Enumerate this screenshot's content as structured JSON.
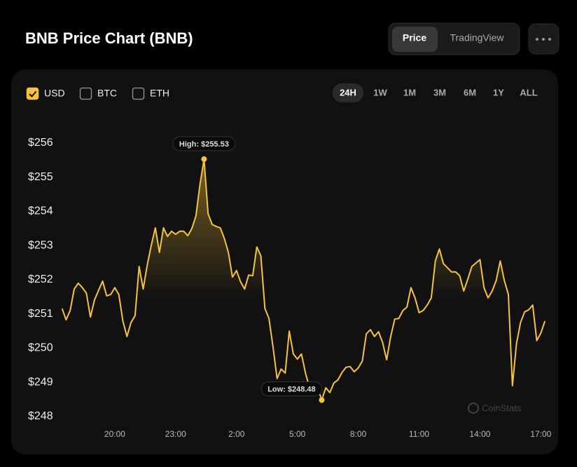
{
  "header": {
    "title": "BNB Price Chart (BNB)",
    "view_toggle": [
      {
        "label": "Price",
        "selected": true
      },
      {
        "label": "TradingView",
        "selected": false
      }
    ]
  },
  "currency_options": [
    {
      "label": "USD",
      "checked": true
    },
    {
      "label": "BTC",
      "checked": false
    },
    {
      "label": "ETH",
      "checked": false
    }
  ],
  "time_ranges": [
    {
      "label": "24H",
      "selected": true
    },
    {
      "label": "1W",
      "selected": false
    },
    {
      "label": "1M",
      "selected": false
    },
    {
      "label": "3M",
      "selected": false
    },
    {
      "label": "6M",
      "selected": false
    },
    {
      "label": "1Y",
      "selected": false
    },
    {
      "label": "ALL",
      "selected": false
    }
  ],
  "watermark": "CoinStats",
  "chart_data": {
    "type": "line",
    "x": [
      17.4,
      17.6,
      17.8,
      18.0,
      18.2,
      18.4,
      18.6,
      18.8,
      19.0,
      19.2,
      19.4,
      19.6,
      19.8,
      20.0,
      20.2,
      20.4,
      20.6,
      20.8,
      21.0,
      21.2,
      21.4,
      21.6,
      21.8,
      22.0,
      22.2,
      22.4,
      22.6,
      22.8,
      23.0,
      23.2,
      23.4,
      23.6,
      23.8,
      24.0,
      24.2,
      24.4,
      24.6,
      24.8,
      25.0,
      25.2,
      25.4,
      25.6,
      25.8,
      26.0,
      26.2,
      26.4,
      26.6,
      26.8,
      27.0,
      27.2,
      27.4,
      27.6,
      27.8,
      28.0,
      28.2,
      28.4,
      28.6,
      28.8,
      29.0,
      29.2,
      29.4,
      29.6,
      29.8,
      30.0,
      30.2,
      30.4,
      30.6,
      30.8,
      31.0,
      31.2,
      31.4,
      31.6,
      31.8,
      32.0,
      32.2,
      32.4,
      32.6,
      32.8,
      33.0,
      33.2,
      33.4,
      33.6,
      33.8,
      34.0,
      34.2,
      34.4,
      34.6,
      34.8,
      35.0,
      35.2,
      35.4,
      35.6,
      35.8,
      36.0,
      36.2,
      36.4,
      36.6,
      36.8,
      37.0,
      37.2,
      37.4,
      37.6,
      37.8,
      38.0,
      38.2,
      38.4,
      38.6,
      38.8,
      39.0,
      39.2,
      39.4,
      39.6,
      39.8,
      40.0,
      40.2,
      40.4,
      40.6,
      40.8,
      41.0,
      41.2
    ],
    "series": [
      {
        "name": "BNB",
        "color": "#f7c23c",
        "values": [
          251.16,
          250.83,
          251.1,
          251.73,
          251.9,
          251.77,
          251.61,
          250.91,
          251.41,
          251.69,
          251.96,
          251.53,
          251.57,
          251.77,
          251.57,
          250.79,
          250.34,
          250.75,
          250.95,
          252.39,
          251.73,
          252.43,
          253.01,
          253.52,
          252.8,
          253.52,
          253.27,
          253.42,
          253.33,
          253.42,
          253.42,
          253.29,
          253.5,
          253.87,
          254.79,
          255.53,
          253.93,
          253.62,
          253.56,
          253.52,
          253.21,
          252.8,
          252.08,
          252.27,
          251.94,
          251.73,
          252.14,
          252.12,
          252.96,
          252.7,
          251.16,
          250.87,
          250.03,
          249.11,
          249.39,
          249.27,
          250.5,
          249.83,
          249.68,
          249.83,
          249.27,
          248.84,
          248.7,
          248.84,
          248.48,
          248.84,
          248.7,
          248.98,
          249.07,
          249.29,
          249.44,
          249.46,
          249.31,
          249.42,
          249.62,
          250.42,
          250.54,
          250.34,
          250.48,
          250.17,
          249.66,
          250.34,
          250.85,
          250.87,
          251.1,
          251.2,
          251.77,
          251.47,
          251.04,
          251.1,
          251.26,
          251.47,
          252.55,
          252.9,
          252.47,
          252.35,
          252.23,
          252.23,
          252.12,
          251.67,
          252.02,
          252.39,
          252.49,
          252.59,
          251.77,
          251.47,
          251.67,
          251.98,
          252.55,
          251.98,
          251.57,
          248.9,
          250.13,
          250.75,
          251.06,
          251.12,
          251.26,
          250.22,
          250.44,
          250.79
        ]
      }
    ],
    "annotations": {
      "high": "High: $255.53",
      "low": "Low: $248.48"
    },
    "xlim": [
      17.38,
      41.23
    ],
    "xticks": [
      {
        "value": 20,
        "label": "20:00"
      },
      {
        "value": 23,
        "label": "23:00"
      },
      {
        "value": 26,
        "label": "2:00"
      },
      {
        "value": 29,
        "label": "5:00"
      },
      {
        "value": 32,
        "label": "8:00"
      },
      {
        "value": 35,
        "label": "11:00"
      },
      {
        "value": 38,
        "label": "14:00"
      },
      {
        "value": 41,
        "label": "17:00"
      }
    ],
    "ylim": [
      248,
      256
    ],
    "yticks": [
      {
        "value": 248,
        "label": "$248"
      },
      {
        "value": 249,
        "label": "$249"
      },
      {
        "value": 250,
        "label": "$250"
      },
      {
        "value": 251,
        "label": "$251"
      },
      {
        "value": 252,
        "label": "$252"
      },
      {
        "value": 253,
        "label": "$253"
      },
      {
        "value": 254,
        "label": "$254"
      },
      {
        "value": 255,
        "label": "$255"
      },
      {
        "value": 256,
        "label": "$256"
      }
    ],
    "grid": false
  }
}
